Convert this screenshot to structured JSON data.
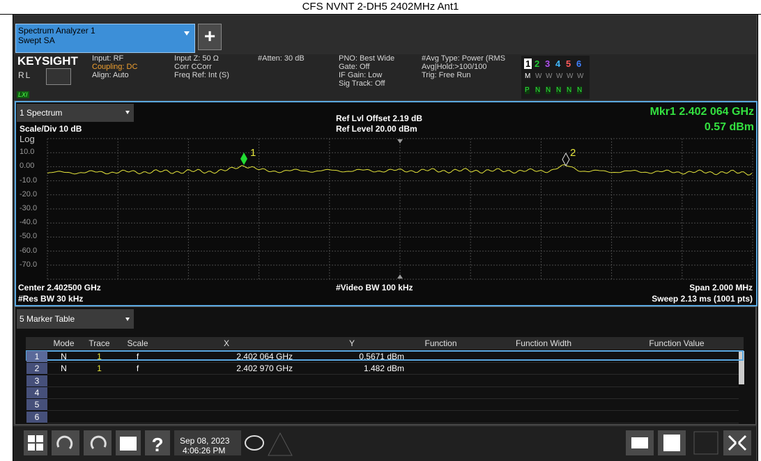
{
  "title": "CFS NVNT 2-DH5 2402MHz Ant1",
  "tab": {
    "name": "Spectrum Analyzer 1",
    "mode": "Swept SA"
  },
  "header": {
    "brand": "KEYSIGHT",
    "rl": "RL",
    "lxi": "LXI",
    "columns": [
      [
        "Input: RF",
        "Coupling: DC",
        "Align: Auto"
      ],
      [
        "Input Z: 50 Ω",
        "Corr CCorr",
        "Freq Ref: Int (S)"
      ],
      [
        "#Atten: 30 dB"
      ],
      [
        "PNO: Best Wide",
        "Gate: Off",
        "IF Gain: Low",
        "Sig Track: Off"
      ],
      [
        "#Avg Type: Power (RMS",
        "Avg|Hold:>100/100",
        "Trig: Free Run"
      ]
    ],
    "traces": [
      "1",
      "2",
      "3",
      "4",
      "5",
      "6"
    ],
    "trace_colors": [
      "#e6e63c",
      "#22cc33",
      "#b050f0",
      "#40b8ff",
      "#ff5a5a",
      "#4080ff"
    ],
    "trace_types": [
      "M",
      "W",
      "W",
      "W",
      "W",
      "W"
    ],
    "detectors": [
      "P",
      "N",
      "N",
      "N",
      "N",
      "N"
    ]
  },
  "spectrum": {
    "window": "1 Spectrum",
    "scale_div": "Scale/Div 10 dB",
    "scale_type": "Log",
    "ref_offset": "Ref Lvl Offset 2.19 dB",
    "ref_level": "Ref Level 20.00 dBm",
    "marker_readout": {
      "x": "Mkr1  2.402 064 GHz",
      "y": "0.57 dBm"
    },
    "y_axis_labels": [
      "10.0",
      "0.00",
      "-10.0",
      "-20.0",
      "-30.0",
      "-40.0",
      "-50.0",
      "-60.0",
      "-70.0"
    ],
    "marker_labels": [
      "1",
      "2"
    ],
    "center": "Center 2.402500 GHz",
    "res_bw": "#Res BW 30 kHz",
    "video_bw": "#Video BW 100 kHz",
    "span": "Span 2.000 MHz",
    "sweep": "Sweep 2.13 ms (1001 pts)"
  },
  "marker_table": {
    "window": "5 Marker Table",
    "columns": [
      "Mode",
      "Trace",
      "Scale",
      "X",
      "Y",
      "Function",
      "Function Width",
      "Function Value"
    ],
    "rows": [
      {
        "n": "1",
        "mode": "N",
        "trace": "1",
        "scale": "f",
        "x": "2.402 064 GHz",
        "y": "0.5671 dBm"
      },
      {
        "n": "2",
        "mode": "N",
        "trace": "1",
        "scale": "f",
        "x": "2.402 970 GHz",
        "y": "1.482 dBm"
      },
      {
        "n": "3"
      },
      {
        "n": "4"
      },
      {
        "n": "5"
      },
      {
        "n": "6"
      }
    ]
  },
  "taskbar": {
    "date": "Sep 08, 2023",
    "time": "4:06:26 PM"
  }
}
